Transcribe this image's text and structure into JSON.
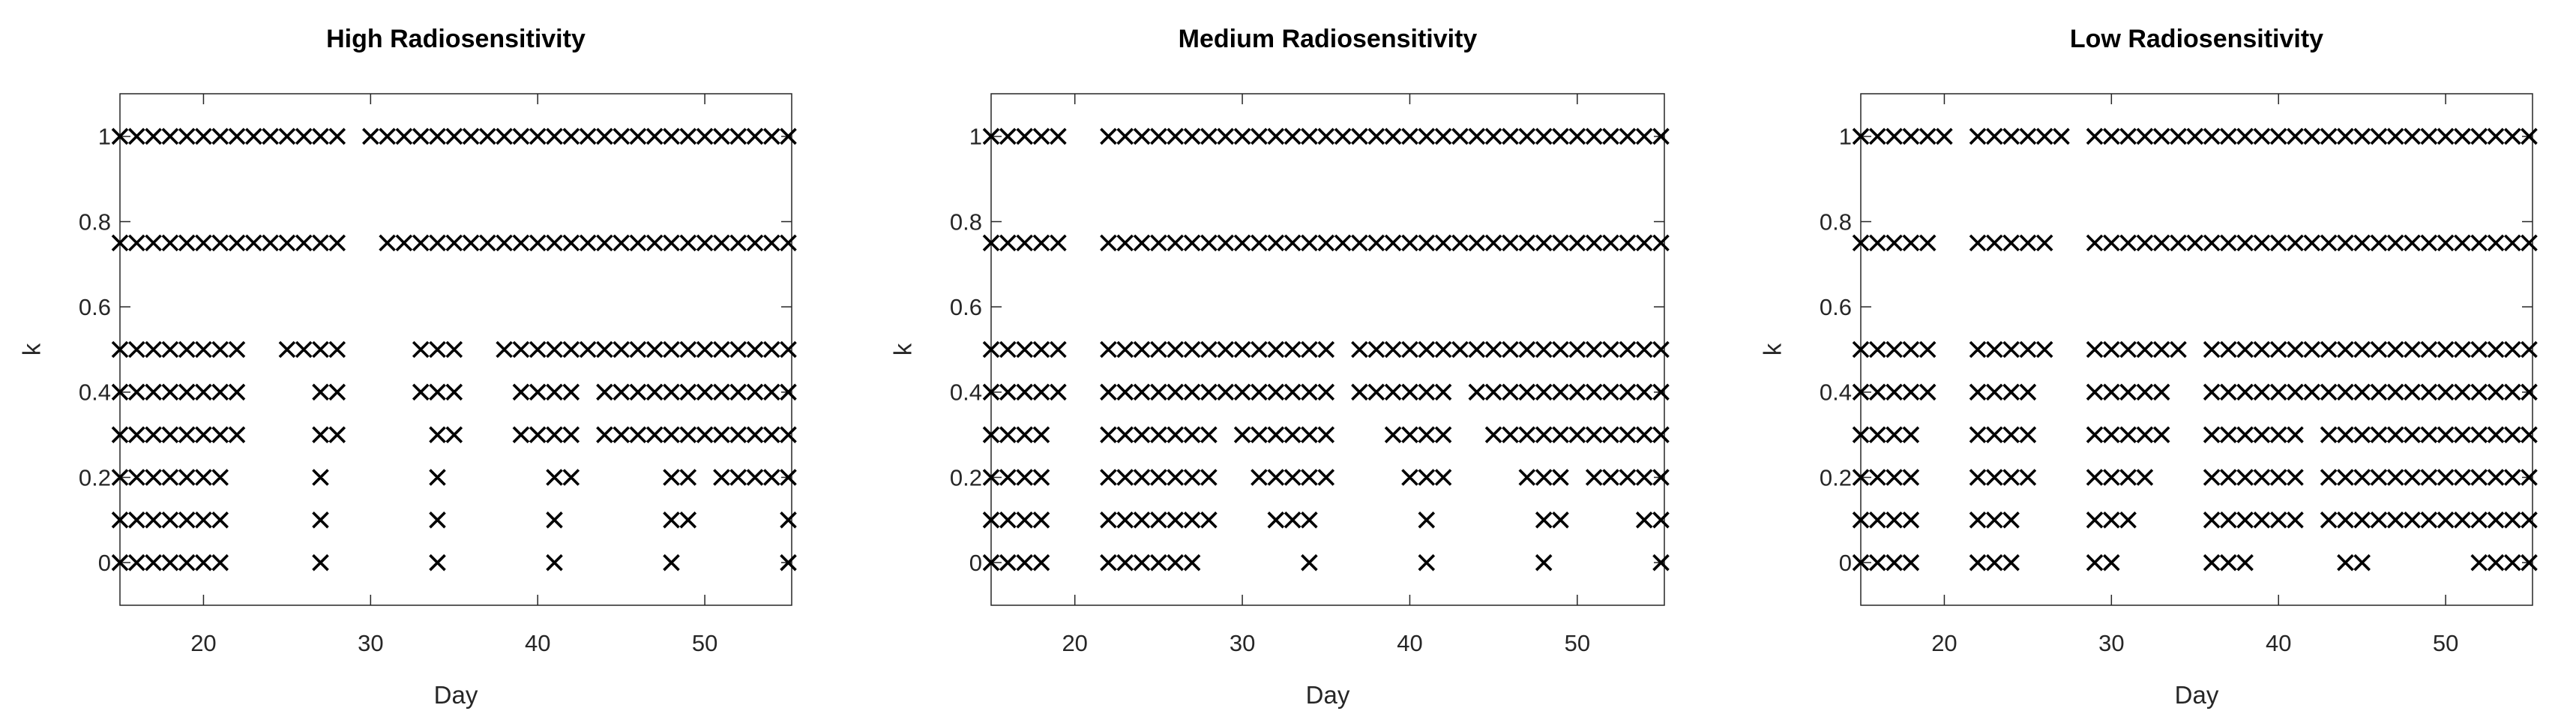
{
  "figure_title": "",
  "colors": {
    "background": "#ffffff",
    "marker": "#000000",
    "axis": "#262626",
    "title": "#000000"
  },
  "chart_data": [
    {
      "type": "scatter",
      "title": "High Radiosensitivity",
      "xlabel": "Day",
      "ylabel": "k",
      "marker": "x",
      "grid": false,
      "legend": "none",
      "xlim": [
        15,
        55.2
      ],
      "ylim": [
        -0.1,
        1.1
      ],
      "xticks": [
        20,
        30,
        40,
        50
      ],
      "yticks": [
        0,
        0.2,
        0.4,
        0.6,
        0.8,
        1
      ],
      "xtick_labels": [
        "20",
        "30",
        "40",
        "50"
      ],
      "ytick_labels": [
        "0",
        "0.2",
        "0.4",
        "0.6",
        "0.8",
        "1"
      ],
      "series_note": "each series is a horizontal row of x-markers at height k; segments are inclusive integer day ranges [start,end]",
      "series": [
        {
          "k": 1.0,
          "segments": [
            [
              15,
              28
            ],
            [
              30,
              55
            ]
          ]
        },
        {
          "k": 0.75,
          "segments": [
            [
              15,
              28
            ],
            [
              31,
              55
            ]
          ]
        },
        {
          "k": 0.5,
          "segments": [
            [
              15,
              22
            ],
            [
              25,
              28
            ],
            [
              33,
              35
            ],
            [
              38,
              55
            ]
          ]
        },
        {
          "k": 0.4,
          "segments": [
            [
              15,
              22
            ],
            [
              27,
              28
            ],
            [
              33,
              35
            ],
            [
              39,
              42
            ],
            [
              44,
              55
            ]
          ]
        },
        {
          "k": 0.3,
          "segments": [
            [
              15,
              22
            ],
            [
              27,
              28
            ],
            [
              34,
              35
            ],
            [
              39,
              42
            ],
            [
              44,
              55
            ]
          ]
        },
        {
          "k": 0.2,
          "segments": [
            [
              15,
              21
            ],
            [
              27,
              27
            ],
            [
              34,
              34
            ],
            [
              41,
              42
            ],
            [
              48,
              49
            ],
            [
              51,
              55
            ]
          ]
        },
        {
          "k": 0.1,
          "segments": [
            [
              15,
              21
            ],
            [
              27,
              27
            ],
            [
              34,
              34
            ],
            [
              41,
              41
            ],
            [
              48,
              49
            ],
            [
              55,
              55
            ]
          ]
        },
        {
          "k": 0.0,
          "segments": [
            [
              15,
              21
            ],
            [
              27,
              27
            ],
            [
              34,
              34
            ],
            [
              41,
              41
            ],
            [
              48,
              48
            ],
            [
              55,
              55
            ]
          ]
        }
      ]
    },
    {
      "type": "scatter",
      "title": "Medium Radiosensitivity",
      "xlabel": "Day",
      "ylabel": "k",
      "marker": "x",
      "grid": false,
      "legend": "none",
      "xlim": [
        15,
        55.2
      ],
      "ylim": [
        -0.1,
        1.1
      ],
      "xticks": [
        20,
        30,
        40,
        50
      ],
      "yticks": [
        0,
        0.2,
        0.4,
        0.6,
        0.8,
        1
      ],
      "xtick_labels": [
        "20",
        "30",
        "40",
        "50"
      ],
      "ytick_labels": [
        "0",
        "0.2",
        "0.4",
        "0.6",
        "0.8",
        "1"
      ],
      "series_note": "each series is a horizontal row of x-markers at height k; segments are inclusive integer day ranges [start,end]",
      "series": [
        {
          "k": 1.0,
          "segments": [
            [
              15,
              19
            ],
            [
              22,
              55
            ]
          ]
        },
        {
          "k": 0.75,
          "segments": [
            [
              15,
              19
            ],
            [
              22,
              55
            ]
          ]
        },
        {
          "k": 0.5,
          "segments": [
            [
              15,
              19
            ],
            [
              22,
              35
            ],
            [
              37,
              55
            ]
          ]
        },
        {
          "k": 0.4,
          "segments": [
            [
              15,
              19
            ],
            [
              22,
              35
            ],
            [
              37,
              42
            ],
            [
              44,
              55
            ]
          ]
        },
        {
          "k": 0.3,
          "segments": [
            [
              15,
              18
            ],
            [
              22,
              28
            ],
            [
              30,
              35
            ],
            [
              39,
              42
            ],
            [
              45,
              55
            ]
          ]
        },
        {
          "k": 0.2,
          "segments": [
            [
              15,
              18
            ],
            [
              22,
              28
            ],
            [
              31,
              35
            ],
            [
              40,
              42
            ],
            [
              47,
              49
            ],
            [
              51,
              55
            ]
          ]
        },
        {
          "k": 0.1,
          "segments": [
            [
              15,
              18
            ],
            [
              22,
              28
            ],
            [
              32,
              34
            ],
            [
              41,
              41
            ],
            [
              48,
              49
            ],
            [
              54,
              55
            ]
          ]
        },
        {
          "k": 0.0,
          "segments": [
            [
              15,
              18
            ],
            [
              22,
              27
            ],
            [
              34,
              34
            ],
            [
              41,
              41
            ],
            [
              48,
              48
            ],
            [
              55,
              55
            ]
          ]
        }
      ]
    },
    {
      "type": "scatter",
      "title": "Low Radiosensitivity",
      "xlabel": "Day",
      "ylabel": "k",
      "marker": "x",
      "grid": false,
      "legend": "none",
      "xlim": [
        15,
        55.2
      ],
      "ylim": [
        -0.1,
        1.1
      ],
      "xticks": [
        20,
        30,
        40,
        50
      ],
      "yticks": [
        0,
        0.2,
        0.4,
        0.6,
        0.8,
        1
      ],
      "xtick_labels": [
        "20",
        "30",
        "40",
        "50"
      ],
      "ytick_labels": [
        "0",
        "0.2",
        "0.4",
        "0.6",
        "0.8",
        "1"
      ],
      "series_note": "each series is a horizontal row of x-markers at height k; segments are inclusive integer day ranges [start,end]",
      "series": [
        {
          "k": 1.0,
          "segments": [
            [
              15,
              20
            ],
            [
              22,
              27
            ],
            [
              29,
              55
            ]
          ]
        },
        {
          "k": 0.75,
          "segments": [
            [
              15,
              19
            ],
            [
              22,
              26
            ],
            [
              29,
              55
            ]
          ]
        },
        {
          "k": 0.5,
          "segments": [
            [
              15,
              19
            ],
            [
              22,
              26
            ],
            [
              29,
              34
            ],
            [
              36,
              55
            ]
          ]
        },
        {
          "k": 0.4,
          "segments": [
            [
              15,
              19
            ],
            [
              22,
              25
            ],
            [
              29,
              33
            ],
            [
              36,
              55
            ]
          ]
        },
        {
          "k": 0.3,
          "segments": [
            [
              15,
              18
            ],
            [
              22,
              25
            ],
            [
              29,
              33
            ],
            [
              36,
              41
            ],
            [
              43,
              55
            ]
          ]
        },
        {
          "k": 0.2,
          "segments": [
            [
              15,
              18
            ],
            [
              22,
              25
            ],
            [
              29,
              32
            ],
            [
              36,
              41
            ],
            [
              43,
              55
            ]
          ]
        },
        {
          "k": 0.1,
          "segments": [
            [
              15,
              18
            ],
            [
              22,
              24
            ],
            [
              29,
              31
            ],
            [
              36,
              41
            ],
            [
              43,
              55
            ]
          ]
        },
        {
          "k": 0.0,
          "segments": [
            [
              15,
              18
            ],
            [
              22,
              24
            ],
            [
              29,
              30
            ],
            [
              36,
              38
            ],
            [
              44,
              45
            ],
            [
              52,
              55
            ]
          ]
        }
      ]
    }
  ]
}
